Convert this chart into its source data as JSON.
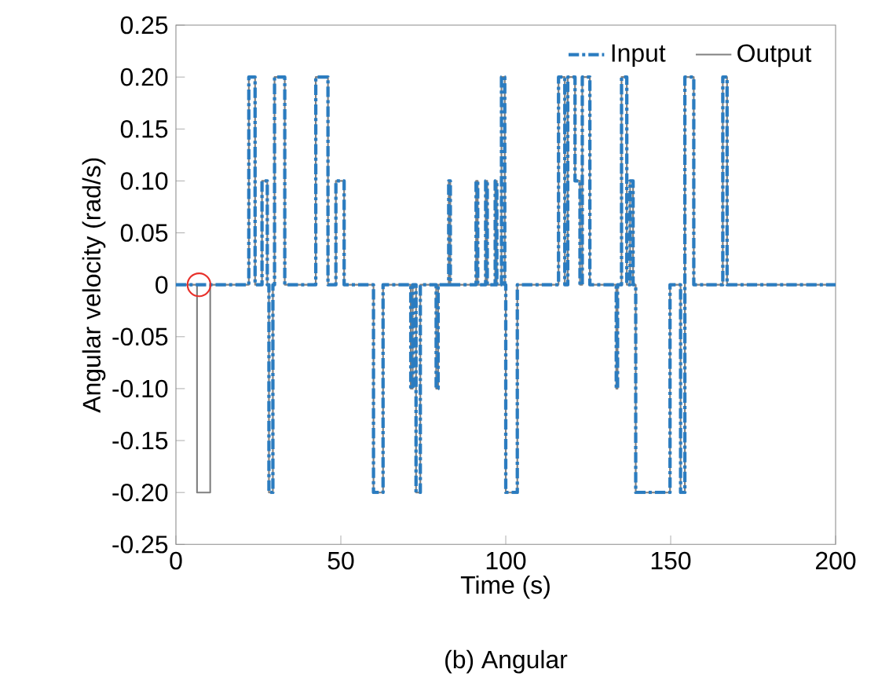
{
  "chart_data": {
    "type": "line",
    "xlabel": "Time (s)",
    "ylabel": "Angular velocity (rad/s)",
    "annotations": [
      "(b) Angular"
    ],
    "xlim": [
      0,
      200
    ],
    "ylim": [
      -0.25,
      0.25
    ],
    "xticks": [
      0,
      50,
      100,
      150,
      200
    ],
    "yticks": [
      {
        "value": -0.25,
        "label": "-0.25"
      },
      {
        "value": -0.2,
        "label": "-0.20"
      },
      {
        "value": -0.15,
        "label": "-0.15"
      },
      {
        "value": -0.1,
        "label": "-0.10"
      },
      {
        "value": -0.05,
        "label": "-0.05"
      },
      0,
      {
        "value": 0.05,
        "label": "0.05"
      },
      {
        "value": 0.1,
        "label": "0.10"
      },
      {
        "value": 0.15,
        "label": "0.15"
      },
      {
        "value": 0.2,
        "label": "0.20"
      },
      {
        "value": 0.25,
        "label": "0.25"
      }
    ],
    "legend": "top right",
    "grid": false,
    "series": [
      {
        "name": "Output",
        "color": "#808080",
        "line_style": "solid",
        "x": [
          0,
          6.4,
          6.4,
          10.4,
          10.4,
          22.1,
          22.1,
          24,
          24,
          26.1,
          26.1,
          27.7,
          27.7,
          28.2,
          28.2,
          29.4,
          29.4,
          29.9,
          29.9,
          33,
          33,
          42.4,
          42.4,
          46.1,
          46.1,
          48.5,
          48.5,
          51,
          51,
          59.9,
          59.9,
          62.8,
          62.8,
          71.2,
          71.2,
          71.8,
          71.8,
          72.8,
          72.8,
          74.1,
          74.1,
          78.9,
          78.9,
          79.5,
          79.5,
          82.7,
          82.7,
          83.2,
          83.2,
          91,
          91,
          91.5,
          91.5,
          93.9,
          93.9,
          94.4,
          94.4,
          96.8,
          96.8,
          97.3,
          97.3,
          98.7,
          98.7,
          99.7,
          99.7,
          100,
          100,
          103.5,
          103.5,
          116,
          116,
          117.9,
          117.9,
          118.8,
          118.8,
          121,
          121,
          122.5,
          122.5,
          123.2,
          123.2,
          125.5,
          125.5,
          133.5,
          133.5,
          133.9,
          133.9,
          135.1,
          135.1,
          136.7,
          136.7,
          137.7,
          137.7,
          138.6,
          138.6,
          139.4,
          139.4,
          149.8,
          149.8,
          153,
          153,
          154.3,
          154.3,
          157,
          157,
          165.8,
          165.8,
          167.1,
          167.1,
          200
        ],
        "values": [
          0,
          0,
          -0.2,
          -0.2,
          0,
          0,
          0.2,
          0.2,
          0,
          0,
          0.1,
          0.1,
          0,
          0,
          -0.2,
          -0.2,
          0,
          0,
          0.2,
          0.2,
          0,
          0,
          0.2,
          0.2,
          0,
          0,
          0.1,
          0.1,
          0,
          0,
          -0.2,
          -0.2,
          0,
          0,
          -0.1,
          -0.1,
          0,
          0,
          -0.2,
          -0.2,
          0,
          0,
          -0.1,
          -0.1,
          0,
          0,
          0.1,
          0.1,
          0,
          0,
          0.1,
          0.1,
          0,
          0,
          0.1,
          0.1,
          0,
          0,
          0.1,
          0.1,
          0,
          0,
          0.2,
          0.2,
          0,
          0,
          -0.2,
          -0.2,
          0,
          0,
          0.2,
          0.2,
          0,
          0,
          0.2,
          0.2,
          0.1,
          0.1,
          0,
          0,
          0.2,
          0.2,
          0,
          0,
          -0.1,
          -0.1,
          0,
          0,
          0.2,
          0.2,
          0,
          0,
          0.1,
          0.1,
          0,
          0,
          -0.2,
          -0.2,
          0,
          0,
          -0.2,
          -0.2,
          0.2,
          0.2,
          0,
          0,
          0.2,
          0.2,
          0,
          0
        ]
      },
      {
        "name": "Input",
        "color": "#2b7cc0",
        "line_style": "dashed",
        "x": [
          0,
          22.1,
          22.1,
          24,
          24,
          26.1,
          26.1,
          27.7,
          27.7,
          28.2,
          28.2,
          29.4,
          29.4,
          29.9,
          29.9,
          33,
          33,
          42.4,
          42.4,
          46.1,
          46.1,
          48.5,
          48.5,
          51,
          51,
          59.9,
          59.9,
          62.8,
          62.8,
          71.2,
          71.2,
          71.8,
          71.8,
          72.8,
          72.8,
          74.1,
          74.1,
          78.9,
          78.9,
          79.5,
          79.5,
          82.7,
          82.7,
          83.2,
          83.2,
          91,
          91,
          91.5,
          91.5,
          93.9,
          93.9,
          94.4,
          94.4,
          96.8,
          96.8,
          97.3,
          97.3,
          98.7,
          98.7,
          99.7,
          99.7,
          100,
          100,
          103.5,
          103.5,
          116,
          116,
          117.9,
          117.9,
          118.8,
          118.8,
          121,
          121,
          122.5,
          122.5,
          123.2,
          123.2,
          125.5,
          125.5,
          133.5,
          133.5,
          133.9,
          133.9,
          135.1,
          135.1,
          136.7,
          136.7,
          137.7,
          137.7,
          138.6,
          138.6,
          139.4,
          139.4,
          149.8,
          149.8,
          153,
          153,
          154.3,
          154.3,
          157,
          157,
          165.8,
          165.8,
          167.1,
          167.1,
          200
        ],
        "values": [
          0,
          0,
          0.2,
          0.2,
          0,
          0,
          0.1,
          0.1,
          0,
          0,
          -0.2,
          -0.2,
          0,
          0,
          0.2,
          0.2,
          0,
          0,
          0.2,
          0.2,
          0,
          0,
          0.1,
          0.1,
          0,
          0,
          -0.2,
          -0.2,
          0,
          0,
          -0.1,
          -0.1,
          0,
          0,
          -0.2,
          -0.2,
          0,
          0,
          -0.1,
          -0.1,
          0,
          0,
          0.1,
          0.1,
          0,
          0,
          0.1,
          0.1,
          0,
          0,
          0.1,
          0.1,
          0,
          0,
          0.1,
          0.1,
          0,
          0,
          0.2,
          0.2,
          0,
          0,
          -0.2,
          -0.2,
          0,
          0,
          0.2,
          0.2,
          0,
          0,
          0.2,
          0.2,
          0.1,
          0.1,
          0,
          0,
          0.2,
          0.2,
          0,
          0,
          -0.1,
          -0.1,
          0,
          0,
          0.2,
          0.2,
          0,
          0,
          0.1,
          0.1,
          0,
          0,
          -0.2,
          -0.2,
          0,
          0,
          -0.2,
          -0.2,
          0.2,
          0.2,
          0,
          0,
          0.2,
          0.2,
          0,
          0
        ]
      },
      {
        "type": "scatter",
        "color": "#e8302a",
        "marker": "circle",
        "x": [
          7
        ],
        "values": [
          0
        ]
      }
    ]
  }
}
